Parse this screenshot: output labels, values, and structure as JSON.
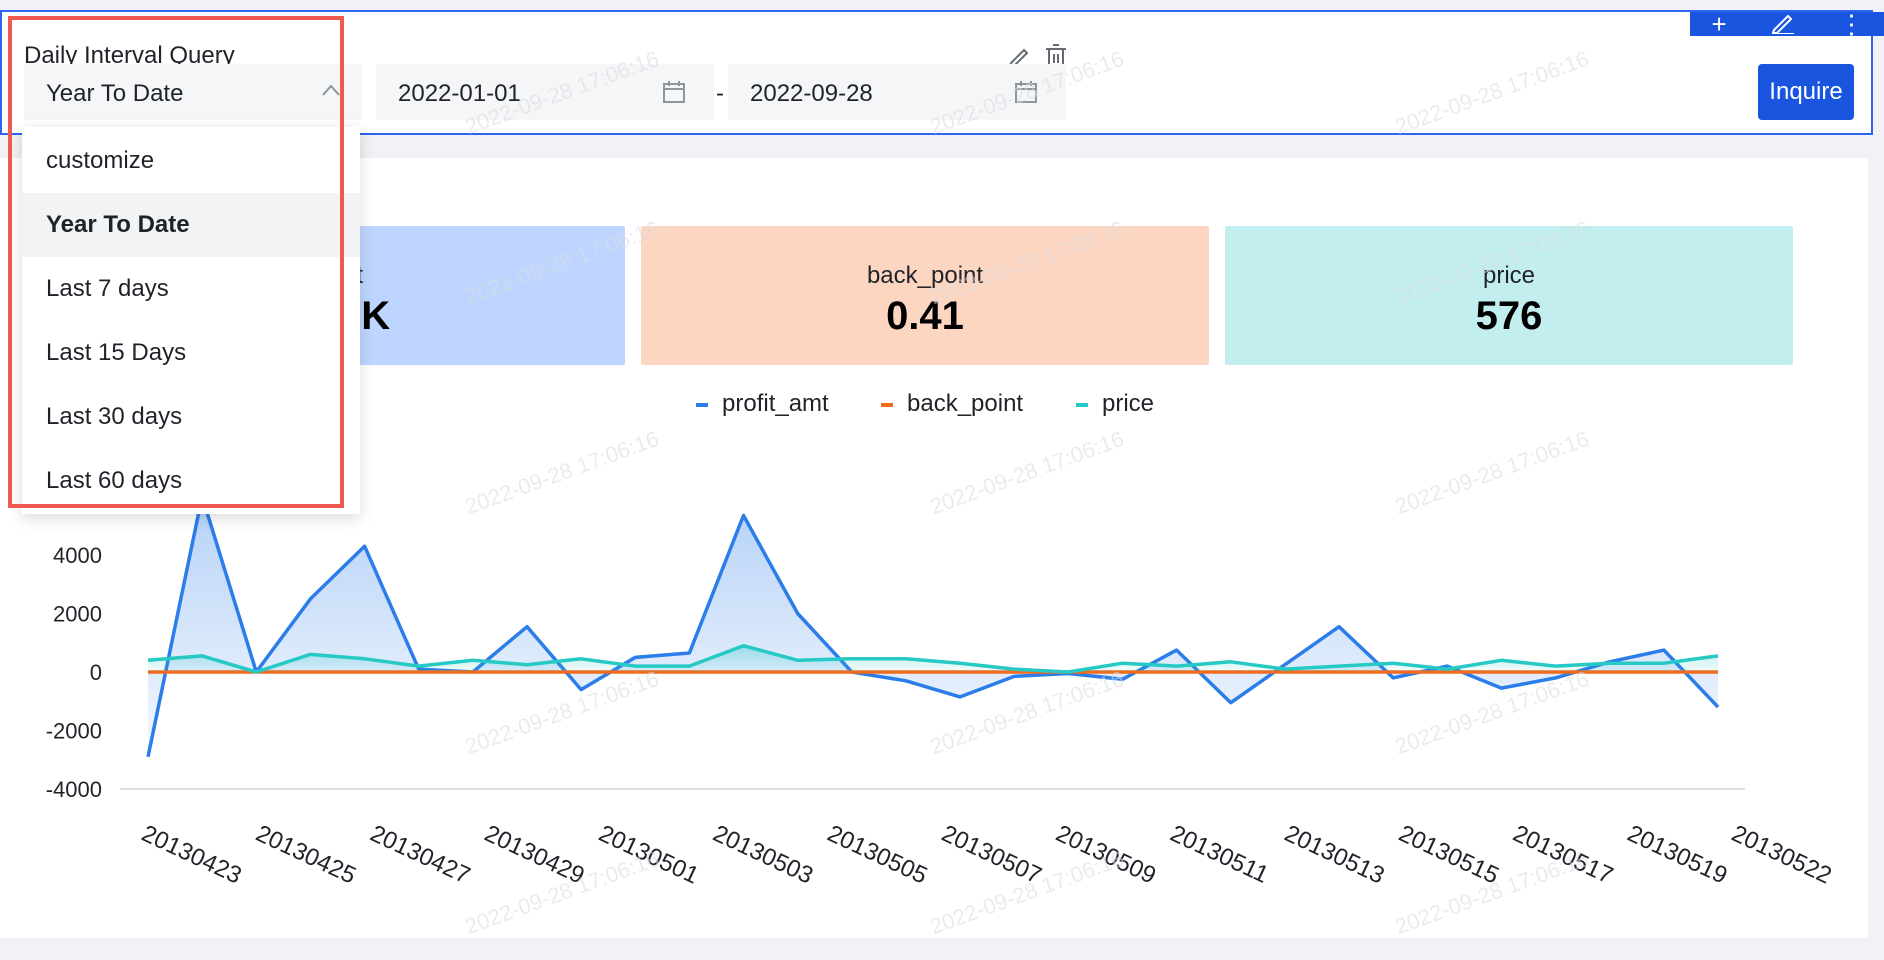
{
  "filter": {
    "title": "Daily Interval Query",
    "select_value": "Year To Date",
    "start_date": "2022-01-01",
    "end_date": "2022-09-28",
    "separator": "-",
    "inquire_label": "Inquire"
  },
  "editor_toolbar": {
    "icons": [
      "plus-icon",
      "edit-icon",
      "more-icon"
    ]
  },
  "dropdown": {
    "options": [
      "customize",
      "Year To Date",
      "Last 7 days",
      "Last 15 Days",
      "Last 30 days",
      "Last 60 days"
    ],
    "selected_index": 1
  },
  "metrics": [
    {
      "label": "nt",
      "value": "3K",
      "color": "#bed6ff"
    },
    {
      "label": "back_point",
      "value": "0.41",
      "color": "#fdd6c2"
    },
    {
      "label": "price",
      "value": "576",
      "color": "#c3eef0"
    }
  ],
  "watermark": "2022-09-28 17:06:16",
  "colors": {
    "accent": "#1a55e0",
    "highlight": "#ee5a4f"
  },
  "chart_data": {
    "type": "line",
    "legend": [
      "profit_amt",
      "back_point",
      "price"
    ],
    "legend_position": "top-center",
    "y_ticks": [
      4000,
      2000,
      0,
      -2000,
      -4000
    ],
    "ylim": [
      -4200,
      6000
    ],
    "x_tick_labels": [
      "20130423",
      "20130425",
      "20130427",
      "20130429",
      "20130501",
      "20130503",
      "20130505",
      "20130507",
      "20130509",
      "20130511",
      "20130513",
      "20130515",
      "20130517",
      "20130519",
      "20130522"
    ],
    "grid": false,
    "series": [
      {
        "name": "profit_amt",
        "color": "#2b7de9",
        "area": true,
        "values": [
          -2900,
          6000,
          0,
          2500,
          4300,
          100,
          0,
          1550,
          -600,
          500,
          650,
          5350,
          2000,
          0,
          -300,
          -850,
          -150,
          -50,
          -250,
          750,
          -1050,
          250,
          1550,
          -200,
          200,
          -550,
          -200,
          350,
          750,
          -1200
        ]
      },
      {
        "name": "back_point",
        "color": "#f26b1d",
        "area": false,
        "values": [
          0.41,
          0.41,
          0.41,
          0.41,
          0.41,
          0.41,
          0.41,
          0.41,
          0.41,
          0.41,
          0.41,
          0.41,
          0.41,
          0.41,
          0.41,
          0.41,
          0.41,
          0.41,
          0.41,
          0.41,
          0.41,
          0.41,
          0.41,
          0.41,
          0.41,
          0.41,
          0.41,
          0.41,
          0.41,
          0.41
        ]
      },
      {
        "name": "price",
        "color": "#26c9c4",
        "area": true,
        "values": [
          400,
          550,
          0,
          600,
          450,
          200,
          400,
          250,
          450,
          200,
          200,
          900,
          400,
          450,
          450,
          300,
          100,
          0,
          300,
          200,
          350,
          100,
          200,
          300,
          100,
          400,
          200,
          300,
          300,
          550
        ]
      }
    ]
  }
}
